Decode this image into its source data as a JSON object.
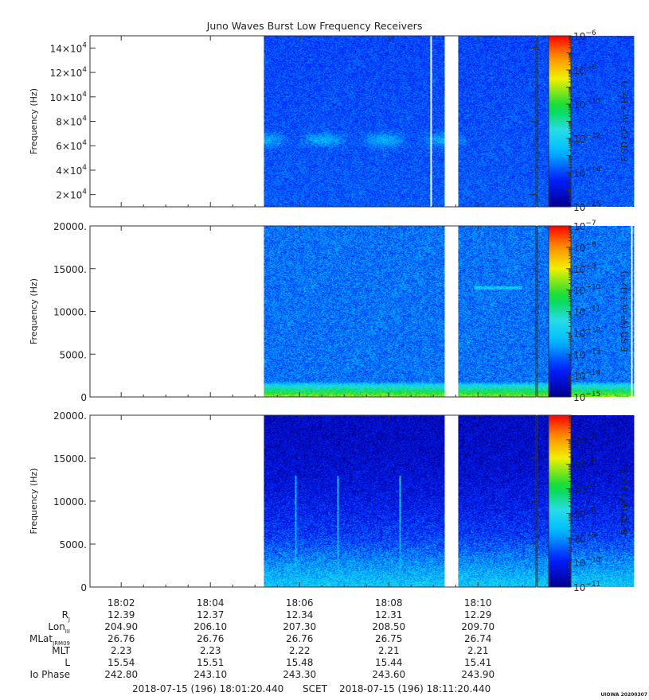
{
  "figure": {
    "title": "Juno Waves Burst Low Frequency Receivers",
    "credit": "UIOWA 20200307"
  },
  "chart_data": [
    {
      "type": "heatmap",
      "panel": "e-hfr",
      "ylabel": "Frequency (Hz)",
      "ylim": [
        10000,
        150000
      ],
      "yticks": [
        {
          "value": 20000,
          "mant": "2×10",
          "exp": "4"
        },
        {
          "value": 40000,
          "mant": "4×10",
          "exp": "4"
        },
        {
          "value": 60000,
          "mant": "6×10",
          "exp": "4"
        },
        {
          "value": 80000,
          "mant": "8×10",
          "exp": "4"
        },
        {
          "value": 100000,
          "mant": "10×10",
          "exp": "4"
        },
        {
          "value": 120000,
          "mant": "12×10",
          "exp": "4"
        },
        {
          "value": 140000,
          "mant": "14×10",
          "exp": "4"
        }
      ],
      "colorbar": {
        "label": "E SD (V² m⁻² Hz⁻¹)",
        "scale": "log",
        "range_exponents": [
          -16,
          -6
        ],
        "ticks": [
          -6,
          -8,
          -10,
          -12,
          -14,
          -16
        ]
      },
      "data_span_min": [
        5.2,
        13.5
      ],
      "gap_min": [
        9.25,
        9.55
      ],
      "thin_gap_min": 8.95,
      "background_level": -14,
      "features": [
        {
          "kind": "band",
          "freq": 65000,
          "level": -13
        },
        {
          "kind": "low-freq-edge",
          "freq": 10500,
          "level": -15.5
        }
      ]
    },
    {
      "type": "heatmap",
      "panel": "e-lfr",
      "ylabel": "Frequency (Hz)",
      "ylim": [
        0,
        20000
      ],
      "yticks": [
        {
          "value": 0,
          "mant": "0",
          "exp": ""
        },
        {
          "value": 5000,
          "mant": "5000.",
          "exp": ""
        },
        {
          "value": 10000,
          "mant": "10000.",
          "exp": ""
        },
        {
          "value": 15000,
          "mant": "15000.",
          "exp": ""
        },
        {
          "value": 20000,
          "mant": "20000.",
          "exp": ""
        }
      ],
      "colorbar": {
        "label": "E SD (V² m⁻² Hz⁻¹)",
        "scale": "log",
        "range_exponents": [
          -15,
          -7
        ],
        "ticks": [
          -7,
          -8,
          -9,
          -10,
          -11,
          -12,
          -13,
          -14,
          -15
        ]
      },
      "data_span_min": [
        5.2,
        13.5
      ],
      "gap_min": [
        9.25,
        9.55
      ],
      "thin_gap_min": 13.45,
      "background_level": -13,
      "features": [
        {
          "kind": "low-freq-enhancement",
          "freq_max": 1800,
          "level_peak": -9.5
        },
        {
          "kind": "faint-tone",
          "freq": 12800,
          "level": -12
        }
      ]
    },
    {
      "type": "heatmap",
      "panel": "b-lfr",
      "ylabel": "Frequency (Hz)",
      "ylim": [
        0,
        20000
      ],
      "yticks": [
        {
          "value": 0,
          "mant": "0",
          "exp": ""
        },
        {
          "value": 5000,
          "mant": "5000.",
          "exp": ""
        },
        {
          "value": 10000,
          "mant": "10000.",
          "exp": ""
        },
        {
          "value": 15000,
          "mant": "15000.",
          "exp": ""
        },
        {
          "value": 20000,
          "mant": "20000.",
          "exp": ""
        }
      ],
      "colorbar": {
        "label": "B SD (nT² Hz⁻¹)",
        "scale": "log",
        "range_exponents": [
          -11,
          -4
        ],
        "ticks": [
          -5,
          -6,
          -7,
          -8,
          -9,
          -10,
          -11
        ]
      },
      "data_span_min": [
        5.2,
        13.5
      ],
      "gap_min": [
        9.25,
        9.55
      ],
      "background_level": -10.5,
      "features": [
        {
          "kind": "low-freq-enhancement",
          "freq_max": 6000,
          "level_peak": -8.3
        },
        {
          "kind": "whistler",
          "time_min": 5.9
        },
        {
          "kind": "whistler",
          "time_min": 6.85
        },
        {
          "kind": "whistler",
          "time_min": 8.25
        }
      ]
    }
  ],
  "time_axis": {
    "range_min": [
      1.3,
      11.3
    ],
    "ticks": [
      {
        "min": 2,
        "label": "18:02"
      },
      {
        "min": 4,
        "label": "18:04"
      },
      {
        "min": 6,
        "label": "18:06"
      },
      {
        "min": 8,
        "label": "18:08"
      },
      {
        "min": 10,
        "label": "18:10"
      }
    ],
    "minor_ticks_min": [
      2.5,
      3,
      3.5,
      4.5,
      5,
      5.5,
      6.5,
      7,
      7.5,
      8.5,
      9,
      9.5,
      10.5,
      11
    ]
  },
  "ephemeris": {
    "rows": [
      {
        "label": "R",
        "sub": "J",
        "values": [
          "12.39",
          "12.37",
          "12.34",
          "12.31",
          "12.29"
        ]
      },
      {
        "label": "Lon",
        "sub": "III",
        "values": [
          "204.90",
          "206.10",
          "207.30",
          "208.50",
          "209.70"
        ]
      },
      {
        "label": "MLat",
        "sub": "JRM09",
        "values": [
          "26.76",
          "26.76",
          "26.76",
          "26.75",
          "26.74"
        ]
      },
      {
        "label": "MLT",
        "sub": "",
        "values": [
          "2.23",
          "2.23",
          "2.22",
          "2.21",
          "2.21"
        ]
      },
      {
        "label": "L",
        "sub": "",
        "values": [
          "15.54",
          "15.51",
          "15.48",
          "15.44",
          "15.41"
        ]
      },
      {
        "label": "Io Phase",
        "sub": "",
        "values": [
          "242.80",
          "243.10",
          "243.30",
          "243.60",
          "243.90"
        ]
      }
    ]
  },
  "footer": {
    "start": "2018-07-15 (196) 18:01:20.440",
    "mid": "SCET",
    "end": "2018-07-15 (196) 18:11:20.440"
  }
}
